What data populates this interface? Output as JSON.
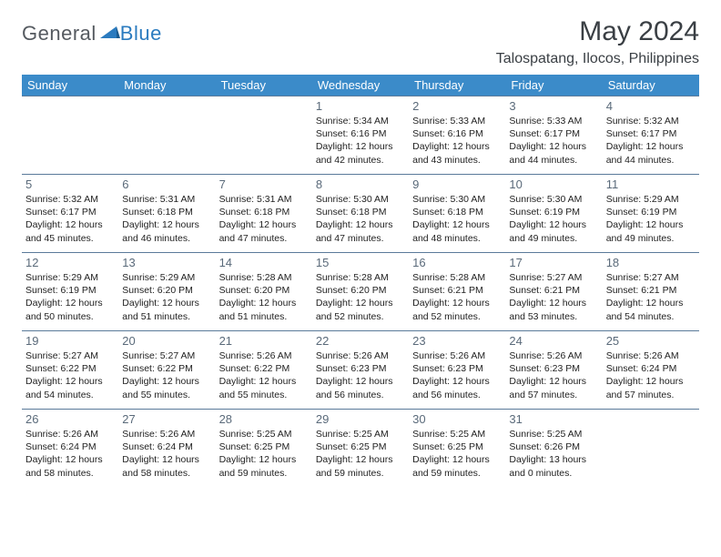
{
  "logo": {
    "general": "General",
    "blue": "Blue"
  },
  "title": "May 2024",
  "location": "Talospatang, Ilocos, Philippines",
  "colors": {
    "header_bg": "#3b8bc9",
    "header_text": "#ffffff",
    "border": "#5a7a9a",
    "daynum": "#5a6a7a",
    "body_text": "#222222",
    "title_text": "#3a3f44",
    "logo_gray": "#555a60",
    "logo_blue": "#2b7bbf"
  },
  "weekdays": [
    "Sunday",
    "Monday",
    "Tuesday",
    "Wednesday",
    "Thursday",
    "Friday",
    "Saturday"
  ],
  "first_weekday_index": 3,
  "days": [
    {
      "n": "1",
      "sunrise": "5:34 AM",
      "sunset": "6:16 PM",
      "daylight": "12 hours and 42 minutes."
    },
    {
      "n": "2",
      "sunrise": "5:33 AM",
      "sunset": "6:16 PM",
      "daylight": "12 hours and 43 minutes."
    },
    {
      "n": "3",
      "sunrise": "5:33 AM",
      "sunset": "6:17 PM",
      "daylight": "12 hours and 44 minutes."
    },
    {
      "n": "4",
      "sunrise": "5:32 AM",
      "sunset": "6:17 PM",
      "daylight": "12 hours and 44 minutes."
    },
    {
      "n": "5",
      "sunrise": "5:32 AM",
      "sunset": "6:17 PM",
      "daylight": "12 hours and 45 minutes."
    },
    {
      "n": "6",
      "sunrise": "5:31 AM",
      "sunset": "6:18 PM",
      "daylight": "12 hours and 46 minutes."
    },
    {
      "n": "7",
      "sunrise": "5:31 AM",
      "sunset": "6:18 PM",
      "daylight": "12 hours and 47 minutes."
    },
    {
      "n": "8",
      "sunrise": "5:30 AM",
      "sunset": "6:18 PM",
      "daylight": "12 hours and 47 minutes."
    },
    {
      "n": "9",
      "sunrise": "5:30 AM",
      "sunset": "6:18 PM",
      "daylight": "12 hours and 48 minutes."
    },
    {
      "n": "10",
      "sunrise": "5:30 AM",
      "sunset": "6:19 PM",
      "daylight": "12 hours and 49 minutes."
    },
    {
      "n": "11",
      "sunrise": "5:29 AM",
      "sunset": "6:19 PM",
      "daylight": "12 hours and 49 minutes."
    },
    {
      "n": "12",
      "sunrise": "5:29 AM",
      "sunset": "6:19 PM",
      "daylight": "12 hours and 50 minutes."
    },
    {
      "n": "13",
      "sunrise": "5:29 AM",
      "sunset": "6:20 PM",
      "daylight": "12 hours and 51 minutes."
    },
    {
      "n": "14",
      "sunrise": "5:28 AM",
      "sunset": "6:20 PM",
      "daylight": "12 hours and 51 minutes."
    },
    {
      "n": "15",
      "sunrise": "5:28 AM",
      "sunset": "6:20 PM",
      "daylight": "12 hours and 52 minutes."
    },
    {
      "n": "16",
      "sunrise": "5:28 AM",
      "sunset": "6:21 PM",
      "daylight": "12 hours and 52 minutes."
    },
    {
      "n": "17",
      "sunrise": "5:27 AM",
      "sunset": "6:21 PM",
      "daylight": "12 hours and 53 minutes."
    },
    {
      "n": "18",
      "sunrise": "5:27 AM",
      "sunset": "6:21 PM",
      "daylight": "12 hours and 54 minutes."
    },
    {
      "n": "19",
      "sunrise": "5:27 AM",
      "sunset": "6:22 PM",
      "daylight": "12 hours and 54 minutes."
    },
    {
      "n": "20",
      "sunrise": "5:27 AM",
      "sunset": "6:22 PM",
      "daylight": "12 hours and 55 minutes."
    },
    {
      "n": "21",
      "sunrise": "5:26 AM",
      "sunset": "6:22 PM",
      "daylight": "12 hours and 55 minutes."
    },
    {
      "n": "22",
      "sunrise": "5:26 AM",
      "sunset": "6:23 PM",
      "daylight": "12 hours and 56 minutes."
    },
    {
      "n": "23",
      "sunrise": "5:26 AM",
      "sunset": "6:23 PM",
      "daylight": "12 hours and 56 minutes."
    },
    {
      "n": "24",
      "sunrise": "5:26 AM",
      "sunset": "6:23 PM",
      "daylight": "12 hours and 57 minutes."
    },
    {
      "n": "25",
      "sunrise": "5:26 AM",
      "sunset": "6:24 PM",
      "daylight": "12 hours and 57 minutes."
    },
    {
      "n": "26",
      "sunrise": "5:26 AM",
      "sunset": "6:24 PM",
      "daylight": "12 hours and 58 minutes."
    },
    {
      "n": "27",
      "sunrise": "5:26 AM",
      "sunset": "6:24 PM",
      "daylight": "12 hours and 58 minutes."
    },
    {
      "n": "28",
      "sunrise": "5:25 AM",
      "sunset": "6:25 PM",
      "daylight": "12 hours and 59 minutes."
    },
    {
      "n": "29",
      "sunrise": "5:25 AM",
      "sunset": "6:25 PM",
      "daylight": "12 hours and 59 minutes."
    },
    {
      "n": "30",
      "sunrise": "5:25 AM",
      "sunset": "6:25 PM",
      "daylight": "12 hours and 59 minutes."
    },
    {
      "n": "31",
      "sunrise": "5:25 AM",
      "sunset": "6:26 PM",
      "daylight": "13 hours and 0 minutes."
    }
  ]
}
